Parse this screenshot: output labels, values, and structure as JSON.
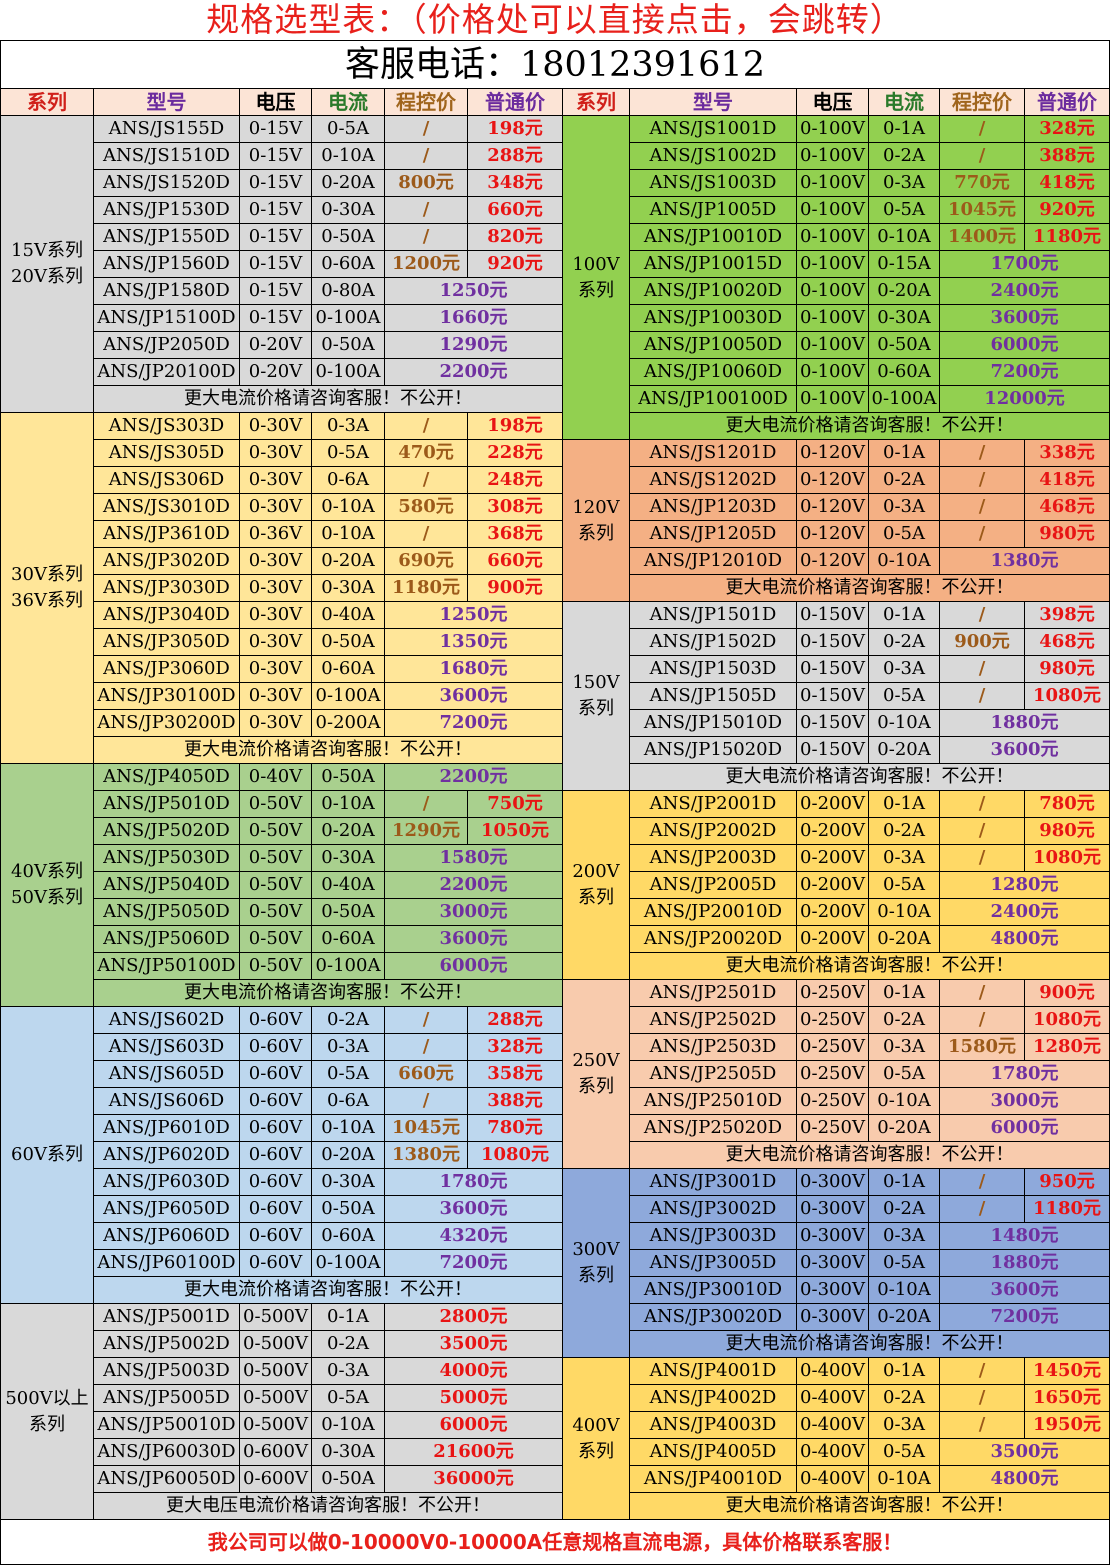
{
  "title": "规格选型表：（价格处可以直接点击，会跳转）",
  "phone": "客服电话：18012391612",
  "headers": [
    "系列",
    "型号",
    "电压",
    "电流",
    "程控价",
    "普通价"
  ],
  "footer": "我公司可以做0-10000V0-10000A任意规格直流电源，具体价格联系客服！",
  "colors": {
    "gray": "#d9d9d9",
    "yellow": "#ffe699",
    "green": "#a9d08e",
    "blue": "#bdd7ee",
    "green_bright": "#92d050",
    "orange": "#f4b084",
    "gold": "#ffd966",
    "peach": "#f8cbad",
    "blue_dark": "#8ea9db",
    "header_bg": "#fce4d6",
    "price_red": "#e81414",
    "price_brown": "#9c5a1a",
    "price_purple": "#7030a0"
  },
  "left": [
    {
      "series": [
        "15V系列",
        "20V系列"
      ],
      "color": "#d9d9d9",
      "rows": [
        {
          "model": "ANS/JS155D",
          "v": "0-15V",
          "a": "0-5A",
          "prog": "/",
          "price": "198元"
        },
        {
          "model": "ANS/JS1510D",
          "v": "0-15V",
          "a": "0-10A",
          "prog": "/",
          "price": "288元"
        },
        {
          "model": "ANS/JS1520D",
          "v": "0-15V",
          "a": "0-20A",
          "prog": "800元",
          "price": "348元"
        },
        {
          "model": "ANS/JP1530D",
          "v": "0-15V",
          "a": "0-30A",
          "prog": "/",
          "price": "660元"
        },
        {
          "model": "ANS/JP1550D",
          "v": "0-15V",
          "a": "0-50A",
          "prog": "/",
          "price": "820元"
        },
        {
          "model": "ANS/JP1560D",
          "v": "0-15V",
          "a": "0-60A",
          "prog": "1200元",
          "price": "920元"
        },
        {
          "model": "ANS/JP1580D",
          "v": "0-15V",
          "a": "0-80A",
          "merged": "1250元"
        },
        {
          "model": "ANS/JP15100D",
          "v": "0-15V",
          "a": "0-100A",
          "merged": "1660元"
        },
        {
          "model": "ANS/JP2050D",
          "v": "0-20V",
          "a": "0-50A",
          "merged": "1290元"
        },
        {
          "model": "ANS/JP20100D",
          "v": "0-20V",
          "a": "0-100A",
          "merged": "2200元"
        },
        {
          "note": "更大电流价格请咨询客服！不公开！"
        }
      ]
    },
    {
      "series": [
        "30V系列",
        "36V系列"
      ],
      "color": "#ffe699",
      "rows": [
        {
          "model": "ANS/JS303D",
          "v": "0-30V",
          "a": "0-3A",
          "prog": "/",
          "price": "198元"
        },
        {
          "model": "ANS/JS305D",
          "v": "0-30V",
          "a": "0-5A",
          "prog": "470元",
          "price": "228元"
        },
        {
          "model": "ANS/JS306D",
          "v": "0-30V",
          "a": "0-6A",
          "prog": "/",
          "price": "248元"
        },
        {
          "model": "ANS/JS3010D",
          "v": "0-30V",
          "a": "0-10A",
          "prog": "580元",
          "price": "308元"
        },
        {
          "model": "ANS/JP3610D",
          "v": "0-36V",
          "a": "0-10A",
          "prog": "/",
          "price": "368元"
        },
        {
          "model": "ANS/JP3020D",
          "v": "0-30V",
          "a": "0-20A",
          "prog": "690元",
          "price": "660元"
        },
        {
          "model": "ANS/JP3030D",
          "v": "0-30V",
          "a": "0-30A",
          "prog": "1180元",
          "price": "900元"
        },
        {
          "model": "ANS/JP3040D",
          "v": "0-30V",
          "a": "0-40A",
          "merged": "1250元"
        },
        {
          "model": "ANS/JP3050D",
          "v": "0-30V",
          "a": "0-50A",
          "merged": "1350元"
        },
        {
          "model": "ANS/JP3060D",
          "v": "0-30V",
          "a": "0-60A",
          "merged": "1680元"
        },
        {
          "model": "ANS/JP30100D",
          "v": "0-30V",
          "a": "0-100A",
          "merged": "3600元"
        },
        {
          "model": "ANS/JP30200D",
          "v": "0-30V",
          "a": "0-200A",
          "merged": "7200元"
        },
        {
          "note": "更大电流价格请咨询客服！不公开！"
        }
      ]
    },
    {
      "series": [
        "40V系列",
        "50V系列"
      ],
      "color": "#a9d08e",
      "rows": [
        {
          "model": "ANS/JP4050D",
          "v": "0-40V",
          "a": "0-50A",
          "merged": "2200元"
        },
        {
          "model": "ANS/JP5010D",
          "v": "0-50V",
          "a": "0-10A",
          "prog": "/",
          "price": "750元"
        },
        {
          "model": "ANS/JP5020D",
          "v": "0-50V",
          "a": "0-20A",
          "prog": "1290元",
          "price": "1050元"
        },
        {
          "model": "ANS/JP5030D",
          "v": "0-50V",
          "a": "0-30A",
          "merged": "1580元"
        },
        {
          "model": "ANS/JP5040D",
          "v": "0-50V",
          "a": "0-40A",
          "merged": "2200元"
        },
        {
          "model": "ANS/JP5050D",
          "v": "0-50V",
          "a": "0-50A",
          "merged": "3000元"
        },
        {
          "model": "ANS/JP5060D",
          "v": "0-50V",
          "a": "0-60A",
          "merged": "3600元"
        },
        {
          "model": "ANS/JP50100D",
          "v": "0-50V",
          "a": "0-100A",
          "merged": "6000元"
        },
        {
          "note": "更大电流价格请咨询客服！不公开！"
        }
      ]
    },
    {
      "series": [
        "60V系列"
      ],
      "color": "#bdd7ee",
      "rows": [
        {
          "model": "ANS/JS602D",
          "v": "0-60V",
          "a": "0-2A",
          "prog": "/",
          "price": "288元"
        },
        {
          "model": "ANS/JS603D",
          "v": "0-60V",
          "a": "0-3A",
          "prog": "/",
          "price": "328元"
        },
        {
          "model": "ANS/JS605D",
          "v": "0-60V",
          "a": "0-5A",
          "prog": "660元",
          "price": "358元"
        },
        {
          "model": "ANS/JS606D",
          "v": "0-60V",
          "a": "0-6A",
          "prog": "/",
          "price": "388元"
        },
        {
          "model": "ANS/JP6010D",
          "v": "0-60V",
          "a": "0-10A",
          "prog": "1045元",
          "price": "780元"
        },
        {
          "model": "ANS/JP6020D",
          "v": "0-60V",
          "a": "0-20A",
          "prog": "1380元",
          "price": "1080元"
        },
        {
          "model": "ANS/JP6030D",
          "v": "0-60V",
          "a": "0-30A",
          "merged": "1780元"
        },
        {
          "model": "ANS/JP6050D",
          "v": "0-60V",
          "a": "0-50A",
          "merged": "3600元"
        },
        {
          "model": "ANS/JP6060D",
          "v": "0-60V",
          "a": "0-60A",
          "merged": "4320元"
        },
        {
          "model": "ANS/JP60100D",
          "v": "0-60V",
          "a": "0-100A",
          "merged": "7200元"
        },
        {
          "note": "更大电流价格请咨询客服！不公开！"
        }
      ]
    },
    {
      "series": [
        "500V以上",
        "系列"
      ],
      "color": "#d9d9d9",
      "rows": [
        {
          "model": "ANS/JP5001D",
          "v": "0-500V",
          "a": "0-1A",
          "merged": "2800元",
          "mc": "red"
        },
        {
          "model": "ANS/JP5002D",
          "v": "0-500V",
          "a": "0-2A",
          "merged": "3500元",
          "mc": "red"
        },
        {
          "model": "ANS/JP5003D",
          "v": "0-500V",
          "a": "0-3A",
          "merged": "4000元",
          "mc": "red"
        },
        {
          "model": "ANS/JP5005D",
          "v": "0-500V",
          "a": "0-5A",
          "merged": "5000元",
          "mc": "red"
        },
        {
          "model": "ANS/JP50010D",
          "v": "0-500V",
          "a": "0-10A",
          "merged": "6000元",
          "mc": "red"
        },
        {
          "model": "ANS/JP60030D",
          "v": "0-600V",
          "a": "0-30A",
          "merged": "21600元",
          "mc": "red"
        },
        {
          "model": "ANS/JP60050D",
          "v": "0-600V",
          "a": "0-50A",
          "merged": "36000元",
          "mc": "red"
        },
        {
          "note": "更大电压电流价格请咨询客服！不公开！"
        }
      ]
    }
  ],
  "right": [
    {
      "series": [
        "100V",
        "系列"
      ],
      "color": "#92d050",
      "rows": [
        {
          "model": "ANS/JS1001D",
          "v": "0-100V",
          "a": "0-1A",
          "prog": "/",
          "price": "328元"
        },
        {
          "model": "ANS/JS1002D",
          "v": "0-100V",
          "a": "0-2A",
          "prog": "/",
          "price": "388元"
        },
        {
          "model": "ANS/JS1003D",
          "v": "0-100V",
          "a": "0-3A",
          "prog": "770元",
          "price": "418元"
        },
        {
          "model": "ANS/JP1005D",
          "v": "0-100V",
          "a": "0-5A",
          "prog": "1045元",
          "price": "920元"
        },
        {
          "model": "ANS/JP10010D",
          "v": "0-100V",
          "a": "0-10A",
          "prog": "1400元",
          "price": "1180元"
        },
        {
          "model": "ANS/JP10015D",
          "v": "0-100V",
          "a": "0-15A",
          "merged": "1700元"
        },
        {
          "model": "ANS/JP10020D",
          "v": "0-100V",
          "a": "0-20A",
          "merged": "2400元"
        },
        {
          "model": "ANS/JP10030D",
          "v": "0-100V",
          "a": "0-30A",
          "merged": "3600元"
        },
        {
          "model": "ANS/JP10050D",
          "v": "0-100V",
          "a": "0-50A",
          "merged": "6000元"
        },
        {
          "model": "ANS/JP10060D",
          "v": "0-100V",
          "a": "0-60A",
          "merged": "7200元"
        },
        {
          "model": "ANS/JP100100D",
          "v": "0-100V",
          "a": "0-100A",
          "merged": "12000元"
        },
        {
          "note": "更大电流价格请咨询客服！不公开！"
        }
      ]
    },
    {
      "series": [
        "120V",
        "系列"
      ],
      "color": "#f4b084",
      "rows": [
        {
          "model": "ANS/JS1201D",
          "v": "0-120V",
          "a": "0-1A",
          "prog": "/",
          "price": "338元"
        },
        {
          "model": "ANS/JS1202D",
          "v": "0-120V",
          "a": "0-2A",
          "prog": "/",
          "price": "418元"
        },
        {
          "model": "ANS/JP1203D",
          "v": "0-120V",
          "a": "0-3A",
          "prog": "/",
          "price": "468元"
        },
        {
          "model": "ANS/JP1205D",
          "v": "0-120V",
          "a": "0-5A",
          "prog": "/",
          "price": "980元"
        },
        {
          "model": "ANS/JP12010D",
          "v": "0-120V",
          "a": "0-10A",
          "merged": "1380元"
        },
        {
          "note": "更大电流价格请咨询客服！不公开！"
        }
      ]
    },
    {
      "series": [
        "150V",
        "系列"
      ],
      "color": "#d9d9d9",
      "rows": [
        {
          "model": "ANS/JP1501D",
          "v": "0-150V",
          "a": "0-1A",
          "prog": "/",
          "price": "398元"
        },
        {
          "model": "ANS/JP1502D",
          "v": "0-150V",
          "a": "0-2A",
          "prog": "900元",
          "price": "468元"
        },
        {
          "model": "ANS/JP1503D",
          "v": "0-150V",
          "a": "0-3A",
          "prog": "/",
          "price": "980元"
        },
        {
          "model": "ANS/JP1505D",
          "v": "0-150V",
          "a": "0-5A",
          "prog": "/",
          "price": "1080元"
        },
        {
          "model": "ANS/JP15010D",
          "v": "0-150V",
          "a": "0-10A",
          "merged": "1880元"
        },
        {
          "model": "ANS/JP15020D",
          "v": "0-150V",
          "a": "0-20A",
          "merged": "3600元"
        },
        {
          "note": "更大电流价格请咨询客服！不公开！"
        }
      ]
    },
    {
      "series": [
        "200V",
        "系列"
      ],
      "color": "#ffd966",
      "rows": [
        {
          "model": "ANS/JP2001D",
          "v": "0-200V",
          "a": "0-1A",
          "prog": "/",
          "price": "780元"
        },
        {
          "model": "ANS/JP2002D",
          "v": "0-200V",
          "a": "0-2A",
          "prog": "/",
          "price": "980元"
        },
        {
          "model": "ANS/JP2003D",
          "v": "0-200V",
          "a": "0-3A",
          "prog": "/",
          "price": "1080元"
        },
        {
          "model": "ANS/JP2005D",
          "v": "0-200V",
          "a": "0-5A",
          "merged": "1280元"
        },
        {
          "model": "ANS/JP20010D",
          "v": "0-200V",
          "a": "0-10A",
          "merged": "2400元"
        },
        {
          "model": "ANS/JP20020D",
          "v": "0-200V",
          "a": "0-20A",
          "merged": "4800元"
        },
        {
          "note": "更大电流价格请咨询客服！不公开！"
        }
      ]
    },
    {
      "series": [
        "250V",
        "系列"
      ],
      "color": "#f8cbad",
      "rows": [
        {
          "model": "ANS/JP2501D",
          "v": "0-250V",
          "a": "0-1A",
          "prog": "/",
          "price": "900元"
        },
        {
          "model": "ANS/JP2502D",
          "v": "0-250V",
          "a": "0-2A",
          "prog": "/",
          "price": "1080元"
        },
        {
          "model": "ANS/JP2503D",
          "v": "0-250V",
          "a": "0-3A",
          "prog": "1580元",
          "price": "1280元"
        },
        {
          "model": "ANS/JP2505D",
          "v": "0-250V",
          "a": "0-5A",
          "merged": "1780元"
        },
        {
          "model": "ANS/JP25010D",
          "v": "0-250V",
          "a": "0-10A",
          "merged": "3000元"
        },
        {
          "model": "ANS/JP25020D",
          "v": "0-250V",
          "a": "0-20A",
          "merged": "6000元"
        },
        {
          "note": "更大电流价格请咨询客服！不公开！"
        }
      ]
    },
    {
      "series": [
        "300V",
        "系列"
      ],
      "color": "#8ea9db",
      "rows": [
        {
          "model": "ANS/JP3001D",
          "v": "0-300V",
          "a": "0-1A",
          "prog": "/",
          "price": "950元"
        },
        {
          "model": "ANS/JP3002D",
          "v": "0-300V",
          "a": "0-2A",
          "prog": "/",
          "price": "1180元"
        },
        {
          "model": "ANS/JP3003D",
          "v": "0-300V",
          "a": "0-3A",
          "merged": "1480元"
        },
        {
          "model": "ANS/JP3005D",
          "v": "0-300V",
          "a": "0-5A",
          "merged": "1880元"
        },
        {
          "model": "ANS/JP30010D",
          "v": "0-300V",
          "a": "0-10A",
          "merged": "3600元"
        },
        {
          "model": "ANS/JP30020D",
          "v": "0-300V",
          "a": "0-20A",
          "merged": "7200元"
        },
        {
          "note": "更大电流价格请咨询客服！不公开！"
        }
      ]
    },
    {
      "series": [
        "400V",
        "系列"
      ],
      "color": "#ffd966",
      "rows": [
        {
          "model": "ANS/JP4001D",
          "v": "0-400V",
          "a": "0-1A",
          "prog": "/",
          "price": "1450元"
        },
        {
          "model": "ANS/JP4002D",
          "v": "0-400V",
          "a": "0-2A",
          "prog": "/",
          "price": "1650元"
        },
        {
          "model": "ANS/JP4003D",
          "v": "0-400V",
          "a": "0-3A",
          "prog": "/",
          "price": "1950元"
        },
        {
          "model": "ANS/JP4005D",
          "v": "0-400V",
          "a": "0-5A",
          "merged": "3500元"
        },
        {
          "model": "ANS/JP40010D",
          "v": "0-400V",
          "a": "0-10A",
          "merged": "4800元"
        },
        {
          "note": "更大电流价格请咨询客服！不公开！"
        }
      ]
    }
  ]
}
